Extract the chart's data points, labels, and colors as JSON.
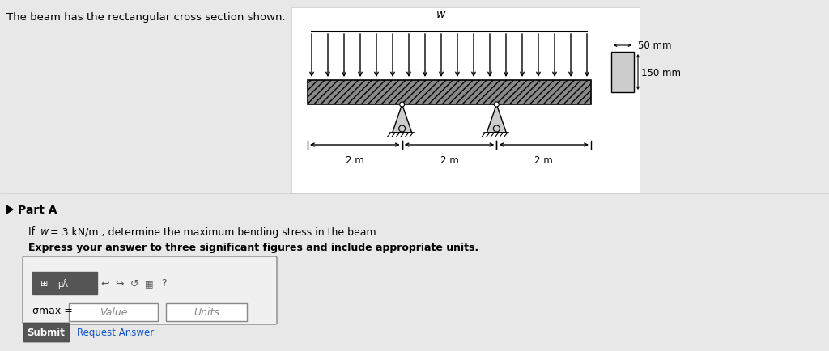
{
  "bg_color": "#e8e8e8",
  "white_box_color": "#ffffff",
  "title_text": "The beam has the rectangular cross section shown.",
  "title_fontsize": 10,
  "part_a_text": "Part A",
  "part_a_fontsize": 10,
  "problem_text": "If w = 3 kN/m , determine the maximum bending stress in the beam.",
  "bold_text": "Express your answer to three significant figures and include appropriate units.",
  "sigma_label": "σmax =",
  "value_placeholder": "Value",
  "units_placeholder": "Units",
  "submit_text": "Submit",
  "request_answer_text": "Request Answer",
  "dim_50mm": "50 mm",
  "dim_150mm": "150 mm",
  "dim_2m_labels": [
    "2 m",
    "2 m",
    "2 m"
  ],
  "w_label": "w",
  "beam_fill_color": "#a0a0a0",
  "beam_hatch": "////",
  "arrow_color": "#000000"
}
